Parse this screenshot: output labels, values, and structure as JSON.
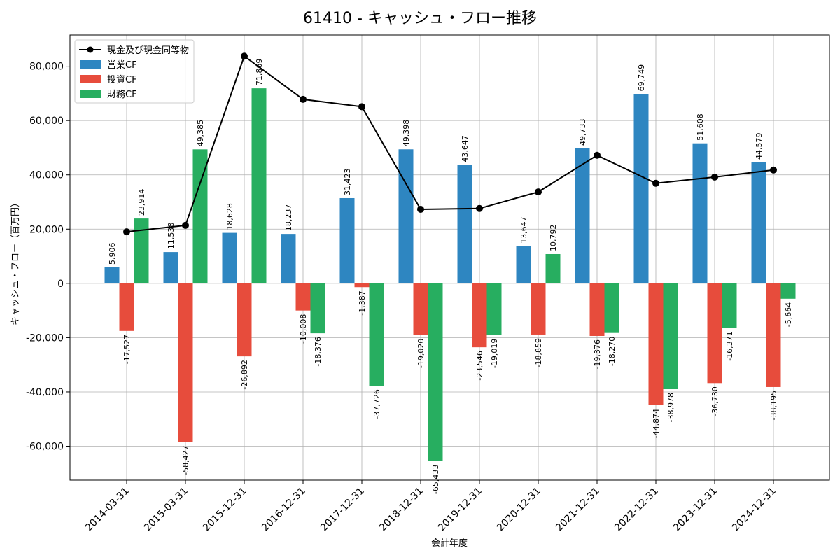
{
  "chart_data": {
    "type": "bar",
    "title": "61410 - キャッシュ・フロー推移",
    "xlabel": "会計年度",
    "ylabel": "キャッシュ・フロー（百万円）",
    "categories": [
      "2014-03-31",
      "2015-03-31",
      "2015-12-31",
      "2016-12-31",
      "2017-12-31",
      "2018-12-31",
      "2019-12-31",
      "2020-12-31",
      "2021-12-31",
      "2022-12-31",
      "2023-12-31",
      "2024-12-31"
    ],
    "ylim": [
      -72500,
      91500
    ],
    "yticks": [
      -60000,
      -40000,
      -20000,
      0,
      20000,
      40000,
      60000,
      80000
    ],
    "ytick_labels": [
      "-60,000",
      "-40,000",
      "-20,000",
      "0",
      "20,000",
      "40,000",
      "60,000",
      "80,000"
    ],
    "grid": true,
    "legend_position": "top-left",
    "series": [
      {
        "name": "営業CF",
        "kind": "bar",
        "color": "#2e86c1",
        "values": [
          5906,
          11538,
          18628,
          18237,
          31423,
          49398,
          43647,
          13647,
          49733,
          69749,
          51608,
          44579
        ],
        "labels": [
          "5,906",
          "11,538",
          "18,628",
          "18,237",
          "31,423",
          "49,398",
          "43,647",
          "13,647",
          "49,733",
          "69,749",
          "51,608",
          "44,579"
        ]
      },
      {
        "name": "投資CF",
        "kind": "bar",
        "color": "#e74c3c",
        "values": [
          -17527,
          -58427,
          -26892,
          -10008,
          -1387,
          -19020,
          -23546,
          -18859,
          -19376,
          -44874,
          -36730,
          -38195
        ],
        "labels": [
          "-17,527",
          "-58,427",
          "-26,892",
          "-10,008",
          "-1,387",
          "-19,020",
          "-23,546",
          "-18,859",
          "-19,376",
          "-44,874",
          "-36,730",
          "-38,195"
        ]
      },
      {
        "name": "財務CF",
        "kind": "bar",
        "color": "#27ae60",
        "values": [
          23914,
          49385,
          71869,
          -18376,
          -37726,
          -65433,
          -19019,
          10792,
          -18270,
          -38978,
          -16371,
          -5664
        ],
        "labels": [
          "23,914",
          "49,385",
          "71,869",
          "-18,376",
          "-37,726",
          "-65,433",
          "-19,019",
          "10,792",
          "-18,270",
          "-38,978",
          "-16,371",
          "-5,664"
        ]
      },
      {
        "name": "現金及び現金同等物",
        "kind": "line",
        "color": "#000000",
        "values": [
          19000,
          21400,
          83700,
          67800,
          65100,
          27300,
          27600,
          33700,
          47200,
          36900,
          39200,
          41800
        ]
      }
    ]
  }
}
